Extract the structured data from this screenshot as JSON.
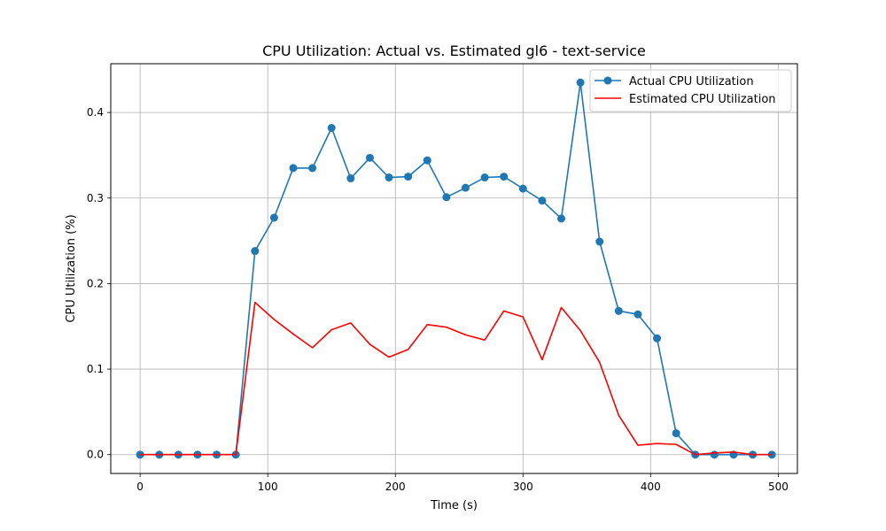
{
  "chart_data": {
    "type": "line",
    "title": "CPU Utilization: Actual vs. Estimated gl6 - text-service",
    "xlabel": "Time (s)",
    "ylabel": "CPU Utilization (%)",
    "xlim": [
      -23,
      515
    ],
    "ylim": [
      -0.022,
      0.457
    ],
    "x_ticks": [
      0,
      100,
      200,
      300,
      400,
      500
    ],
    "x_tick_labels": [
      "0",
      "100",
      "200",
      "300",
      "400",
      "500"
    ],
    "y_ticks": [
      0.0,
      0.1,
      0.2,
      0.3,
      0.4
    ],
    "y_tick_labels": [
      "0.0",
      "0.1",
      "0.2",
      "0.3",
      "0.4"
    ],
    "grid": true,
    "legend_position": "top-right",
    "x": [
      0,
      15,
      30,
      45,
      60,
      75,
      90,
      105,
      120,
      135,
      150,
      165,
      180,
      195,
      210,
      225,
      240,
      255,
      270,
      285,
      300,
      315,
      330,
      345,
      360,
      375,
      390,
      405,
      420,
      435,
      450,
      465,
      480,
      495
    ],
    "series": [
      {
        "name": "Actual CPU Utilization",
        "color": "#1f77b4",
        "marker": "circle",
        "values": [
          0,
          0,
          0,
          0,
          0,
          0,
          0.238,
          0.277,
          0.335,
          0.335,
          0.382,
          0.323,
          0.347,
          0.324,
          0.325,
          0.344,
          0.301,
          0.312,
          0.324,
          0.325,
          0.311,
          0.297,
          0.276,
          0.435,
          0.249,
          0.168,
          0.164,
          0.136,
          0.025,
          0,
          0,
          0,
          0,
          0
        ]
      },
      {
        "name": "Estimated CPU Utilization",
        "color": "#ff0000",
        "marker": "none",
        "values": [
          0,
          0,
          0,
          0,
          0,
          0,
          0.178,
          0.158,
          0.141,
          0.125,
          0.146,
          0.154,
          0.129,
          0.114,
          0.123,
          0.152,
          0.149,
          0.14,
          0.134,
          0.168,
          0.161,
          0.111,
          0.172,
          0.145,
          0.108,
          0.046,
          0.011,
          0.013,
          0.012,
          0,
          0.002,
          0.003,
          0,
          0
        ]
      }
    ]
  }
}
